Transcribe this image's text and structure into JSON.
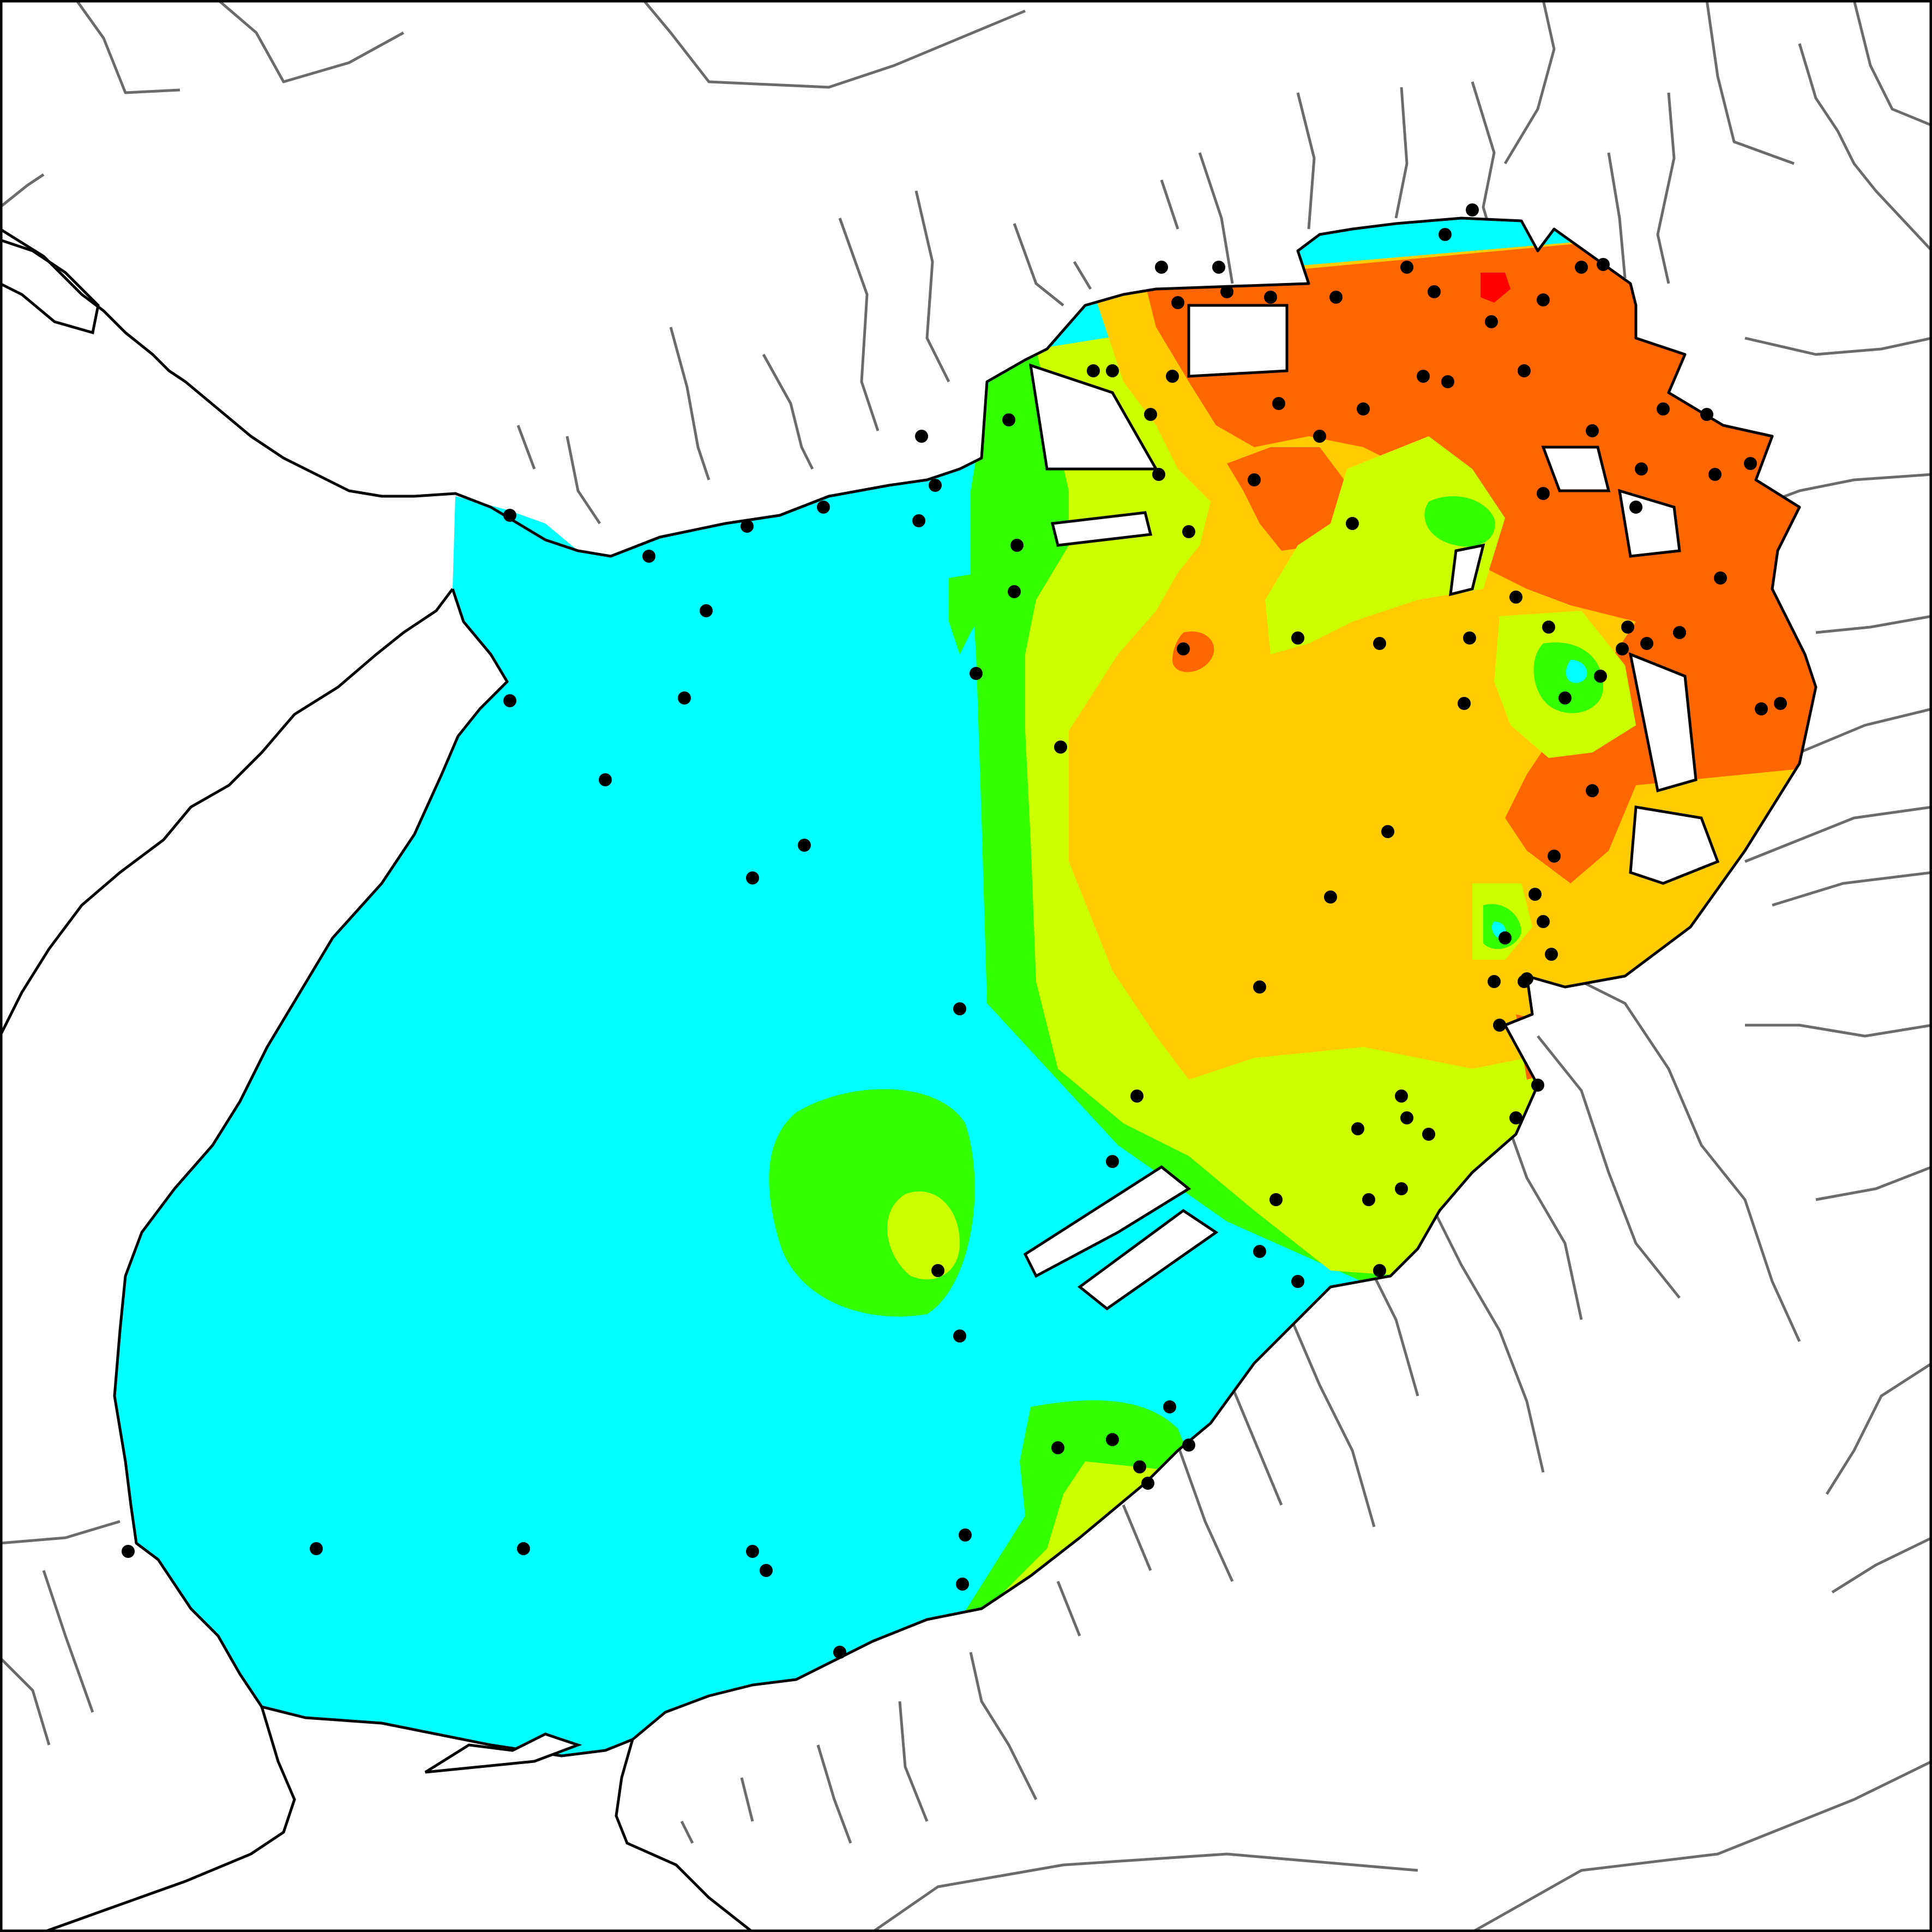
{
  "map": {
    "colors": {
      "background": "#ffffff",
      "frame": "#000000",
      "coastline": "#000000",
      "rivers": "#6b6b6b",
      "station": "#000000",
      "class_1": "#00ffff",
      "class_2": "#33ff00",
      "class_3": "#ccff00",
      "class_4": "#ffcc00",
      "class_5": "#ff6600",
      "class_6": "#ff0000"
    },
    "contour_classes": 6,
    "stations_shown": true
  }
}
